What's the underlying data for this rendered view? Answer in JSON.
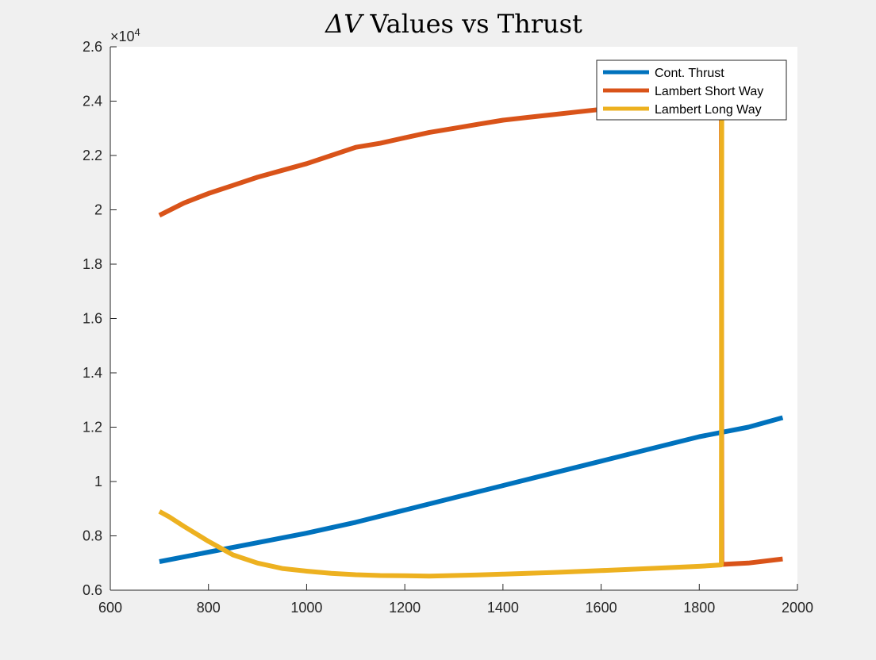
{
  "chart_data": {
    "type": "line",
    "title_prefix": "ΔV",
    "title_rest": " Values vs Thrust",
    "xlabel": "",
    "ylabel": "",
    "xlim": [
      600,
      2000
    ],
    "ylim": [
      6000,
      26000
    ],
    "x_ticks": [
      600,
      800,
      1000,
      1200,
      1400,
      1600,
      1800,
      2000
    ],
    "x_tick_labels": [
      "600",
      "800",
      "1000",
      "1200",
      "1400",
      "1600",
      "1800",
      "2000"
    ],
    "y_ticks": [
      6000,
      8000,
      10000,
      12000,
      14000,
      16000,
      18000,
      20000,
      22000,
      24000,
      26000
    ],
    "y_tick_labels": [
      "0.6",
      "0.8",
      "1",
      "1.2",
      "1.4",
      "1.6",
      "1.8",
      "2",
      "2.2",
      "2.4",
      "2.6"
    ],
    "y_exponent_base": "×10",
    "y_exponent_power": "4",
    "grid": false,
    "legend_position": "top-right",
    "series": [
      {
        "name": "Cont. Thrust",
        "color": "#0072bd",
        "points": [
          [
            700,
            7050
          ],
          [
            800,
            7400
          ],
          [
            900,
            7750
          ],
          [
            1000,
            8100
          ],
          [
            1100,
            8500
          ],
          [
            1200,
            8950
          ],
          [
            1300,
            9400
          ],
          [
            1400,
            9850
          ],
          [
            1500,
            10300
          ],
          [
            1600,
            10750
          ],
          [
            1700,
            11200
          ],
          [
            1800,
            11650
          ],
          [
            1900,
            12000
          ],
          [
            1970,
            12350
          ]
        ]
      },
      {
        "name": "Lambert Short Way",
        "color": "#d95319",
        "points": [
          [
            700,
            19800
          ],
          [
            750,
            20250
          ],
          [
            800,
            20600
          ],
          [
            850,
            20900
          ],
          [
            900,
            21200
          ],
          [
            950,
            21450
          ],
          [
            1000,
            21700
          ],
          [
            1050,
            22000
          ],
          [
            1100,
            22300
          ],
          [
            1150,
            22450
          ],
          [
            1200,
            22650
          ],
          [
            1250,
            22850
          ],
          [
            1300,
            23000
          ],
          [
            1350,
            23150
          ],
          [
            1400,
            23300
          ],
          [
            1450,
            23400
          ],
          [
            1500,
            23500
          ],
          [
            1550,
            23600
          ],
          [
            1600,
            23700
          ],
          [
            1650,
            23780
          ],
          [
            1700,
            23860
          ],
          [
            1750,
            23950
          ],
          [
            1800,
            24030
          ],
          [
            1845,
            24100
          ],
          [
            1846,
            6950
          ],
          [
            1900,
            7000
          ],
          [
            1970,
            7150
          ]
        ]
      },
      {
        "name": "Lambert Long Way",
        "color": "#edb120",
        "points": [
          [
            700,
            8900
          ],
          [
            720,
            8700
          ],
          [
            750,
            8350
          ],
          [
            800,
            7800
          ],
          [
            850,
            7300
          ],
          [
            900,
            7000
          ],
          [
            950,
            6800
          ],
          [
            1000,
            6700
          ],
          [
            1050,
            6620
          ],
          [
            1100,
            6570
          ],
          [
            1150,
            6540
          ],
          [
            1200,
            6530
          ],
          [
            1250,
            6520
          ],
          [
            1300,
            6540
          ],
          [
            1350,
            6560
          ],
          [
            1400,
            6590
          ],
          [
            1450,
            6620
          ],
          [
            1500,
            6650
          ],
          [
            1600,
            6720
          ],
          [
            1700,
            6800
          ],
          [
            1800,
            6880
          ],
          [
            1845,
            6930
          ],
          [
            1846,
            25400
          ]
        ]
      }
    ]
  }
}
